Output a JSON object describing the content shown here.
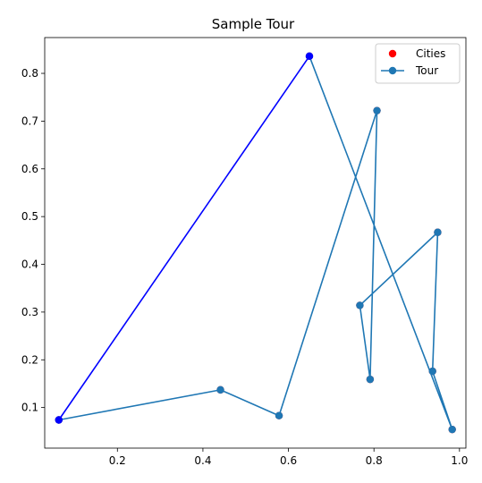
{
  "chart_data": {
    "type": "scatter",
    "title": "Sample Tour",
    "xlabel": "",
    "ylabel": "",
    "xlim": [
      0.03,
      1.015
    ],
    "ylim": [
      0.015,
      0.875
    ],
    "xticks": [
      0.2,
      0.4,
      0.6,
      0.8,
      1.0
    ],
    "xtick_labels": [
      "0.2",
      "0.4",
      "0.6",
      "0.8",
      "1.0"
    ],
    "yticks": [
      0.1,
      0.2,
      0.3,
      0.4,
      0.5,
      0.6,
      0.7,
      0.8
    ],
    "ytick_labels": [
      "0.1",
      "0.2",
      "0.3",
      "0.4",
      "0.5",
      "0.6",
      "0.7",
      "0.8"
    ],
    "grid": false,
    "legend_position": "top-right",
    "legend": [
      {
        "label": "Cities",
        "marker": "dot",
        "color": "#ff0000"
      },
      {
        "label": "Tour",
        "marker": "line-dot",
        "color": "#1f77b4"
      }
    ],
    "series": [
      {
        "name": "Cities",
        "kind": "scatter",
        "color": "#ff0000",
        "x": [
          0.063,
          0.441,
          0.578,
          0.807,
          0.767,
          0.949,
          0.937,
          0.983,
          0.791,
          0.649
        ],
        "y": [
          0.074,
          0.137,
          0.083,
          0.722,
          0.314,
          0.467,
          0.176,
          0.054,
          0.159,
          0.836
        ]
      },
      {
        "name": "Tour",
        "kind": "line",
        "color": "#1f77b4",
        "x": [
          0.063,
          0.441,
          0.578,
          0.807,
          0.791,
          0.767,
          0.949,
          0.937,
          0.983,
          0.649
        ],
        "y": [
          0.074,
          0.137,
          0.083,
          0.722,
          0.159,
          0.314,
          0.467,
          0.176,
          0.054,
          0.836
        ]
      },
      {
        "name": "",
        "kind": "closing-segment",
        "color": "#0000ff",
        "x": [
          0.649,
          0.063
        ],
        "y": [
          0.836,
          0.074
        ]
      }
    ]
  }
}
